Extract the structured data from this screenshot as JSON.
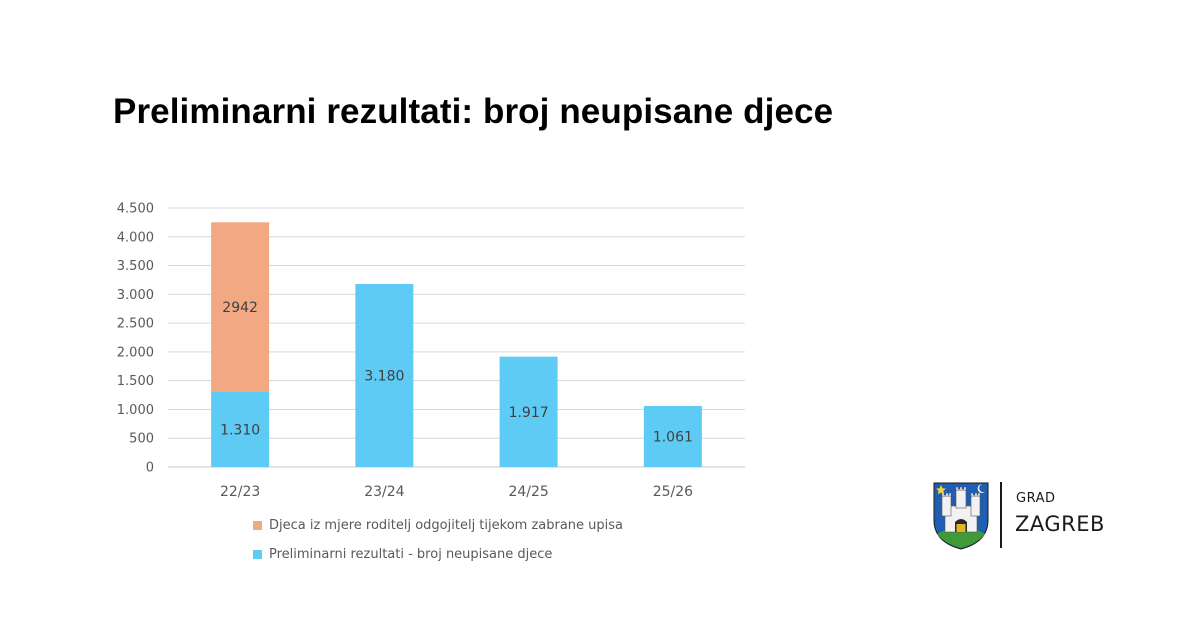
{
  "title": "Preliminarni rezultati: broj neupisane djece",
  "chart_data": {
    "type": "bar",
    "stacked": true,
    "categories": [
      "22/23",
      "23/24",
      "24/25",
      "25/26"
    ],
    "series": [
      {
        "name": "Preliminarni rezultati - broj neupisane djece",
        "color": "#5ecbf5",
        "values": [
          1310,
          3180,
          1917,
          1061
        ],
        "labels": [
          "1.310",
          "3.180",
          "1.917",
          "1.061"
        ]
      },
      {
        "name": "Djeca iz mjere roditelj odgojitelj tijekom zabrane upisa",
        "color": "#f2a882",
        "values": [
          2942,
          0,
          0,
          0
        ],
        "labels": [
          "2942",
          "",
          "",
          ""
        ]
      }
    ],
    "ylim": [
      0,
      4500
    ],
    "yticks": [
      0,
      500,
      1000,
      1500,
      2000,
      2500,
      3000,
      3500,
      4000,
      4500
    ],
    "ytick_labels": [
      "0",
      "500",
      "1.000",
      "1.500",
      "2.000",
      "2.500",
      "3.000",
      "3.500",
      "4.000",
      "4.500"
    ],
    "grid": true,
    "legend": [
      {
        "label": "Djeca iz mjere roditelj odgojitelj tijekom zabrane upisa",
        "color": "#f2a882"
      },
      {
        "label": "Preliminarni rezultati - broj neupisane djece",
        "color": "#5ecbf5"
      }
    ],
    "legend_position": "bottom"
  },
  "logo": {
    "line1": "GRAD",
    "line2": "ZAGREB"
  }
}
